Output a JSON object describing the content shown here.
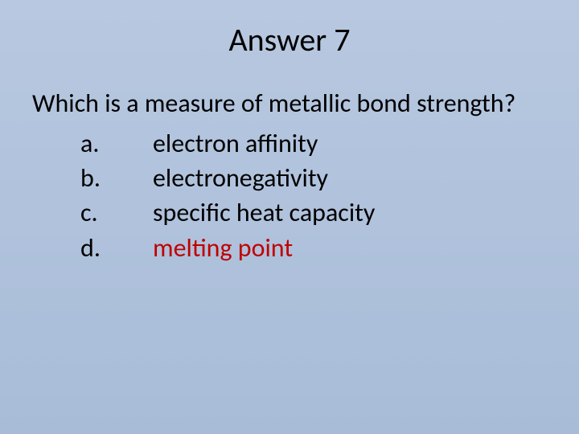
{
  "slide": {
    "title": "Answer 7",
    "question": "Which is a measure of metallic bond strength?",
    "options": [
      {
        "letter": "a.",
        "text": "electron affinity",
        "correct": false
      },
      {
        "letter": "b.",
        "text": "electronegativity",
        "correct": false
      },
      {
        "letter": "c.",
        "text": "specific heat capacity",
        "correct": false
      },
      {
        "letter": "d.",
        "text": "melting point",
        "correct": true
      }
    ],
    "colors": {
      "background_top": "#b8c8e0",
      "background_bottom": "#a8bcd8",
      "text": "#000000",
      "correct_answer": "#c00000"
    },
    "typography": {
      "title_fontsize": 40,
      "body_fontsize": 32,
      "font_family": "Calibri"
    }
  }
}
